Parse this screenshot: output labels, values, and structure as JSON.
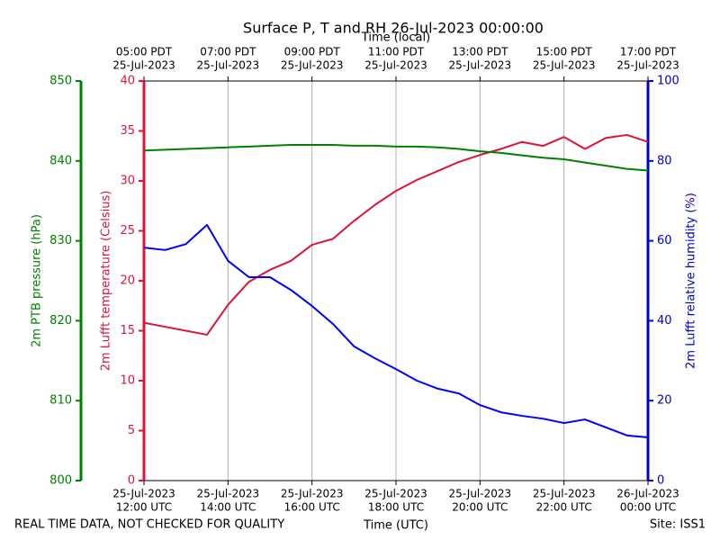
{
  "chart_data": {
    "type": "line",
    "title": "Surface P, T and RH 26-Jul-2023 00:00:00",
    "x2label": "Time (local)",
    "xlabel": "Time (UTC)",
    "ylabel": "2m Lufft temperature (Celsius)",
    "y2label": "2m Lufft relative humidity (%)",
    "y3label": "2m PTB pressure (hPa)",
    "footer_left": "REAL TIME DATA, NOT CHECKED FOR QUALITY",
    "footer_right": "Site: ISS1",
    "grid": true,
    "xlim": [
      0,
      12
    ],
    "xticks": [
      {
        "value": 0,
        "label": [
          "25-Jul-2023",
          "12:00 UTC"
        ]
      },
      {
        "value": 2,
        "label": [
          "25-Jul-2023",
          "14:00 UTC"
        ]
      },
      {
        "value": 4,
        "label": [
          "25-Jul-2023",
          "16:00 UTC"
        ]
      },
      {
        "value": 6,
        "label": [
          "25-Jul-2023",
          "18:00 UTC"
        ]
      },
      {
        "value": 8,
        "label": [
          "25-Jul-2023",
          "20:00 UTC"
        ]
      },
      {
        "value": 10,
        "label": [
          "25-Jul-2023",
          "22:00 UTC"
        ]
      },
      {
        "value": 12,
        "label": [
          "26-Jul-2023",
          "00:00 UTC"
        ]
      }
    ],
    "x2ticks": [
      {
        "value": 0,
        "label": [
          "05:00 PDT",
          "25-Jul-2023"
        ]
      },
      {
        "value": 2,
        "label": [
          "07:00 PDT",
          "25-Jul-2023"
        ]
      },
      {
        "value": 4,
        "label": [
          "09:00 PDT",
          "25-Jul-2023"
        ]
      },
      {
        "value": 6,
        "label": [
          "11:00 PDT",
          "25-Jul-2023"
        ]
      },
      {
        "value": 8,
        "label": [
          "13:00 PDT",
          "25-Jul-2023"
        ]
      },
      {
        "value": 10,
        "label": [
          "15:00 PDT",
          "25-Jul-2023"
        ]
      },
      {
        "value": 12,
        "label": [
          "17:00 PDT",
          "25-Jul-2023"
        ]
      }
    ],
    "ylim": [
      0,
      40
    ],
    "yticks": [
      0,
      5,
      10,
      15,
      20,
      25,
      30,
      35,
      40
    ],
    "ycolor": "#dc143c",
    "y2lim": [
      0,
      100
    ],
    "y2ticks": [
      0,
      20,
      40,
      60,
      80,
      100
    ],
    "y2color": "#0000cc",
    "y3lim": [
      800,
      850
    ],
    "y3ticks": [
      800,
      810,
      820,
      830,
      840,
      850
    ],
    "y3color": "#008000",
    "x": [
      0,
      0.5,
      1,
      1.5,
      2,
      2.5,
      3,
      3.5,
      4,
      4.5,
      5,
      5.5,
      6,
      6.5,
      7,
      7.5,
      8,
      8.5,
      9,
      9.5,
      10,
      10.5,
      11,
      11.5,
      12
    ],
    "series": [
      {
        "axis": "y",
        "color": "#dc143c",
        "values": [
          15.8,
          15.4,
          15.0,
          14.6,
          17.6,
          19.9,
          21.1,
          22.0,
          23.6,
          24.2,
          26.0,
          27.6,
          29.0,
          30.1,
          31.0,
          31.9,
          32.6,
          33.2,
          33.9,
          33.5,
          34.4,
          33.2,
          34.3,
          34.6,
          33.9
        ]
      },
      {
        "axis": "y3",
        "color": "#008000",
        "values": [
          841.3,
          841.4,
          841.5,
          841.6,
          841.7,
          841.8,
          841.9,
          842.0,
          842.0,
          842.0,
          841.9,
          841.9,
          841.8,
          841.8,
          841.7,
          841.5,
          841.2,
          841.0,
          840.7,
          840.4,
          840.2,
          839.8,
          839.4,
          839.0,
          838.8
        ]
      },
      {
        "axis": "y2",
        "color": "#0000ff",
        "values": [
          58.3,
          57.7,
          59.2,
          64.0,
          55.0,
          50.9,
          50.9,
          47.7,
          43.7,
          39.2,
          33.6,
          30.6,
          27.9,
          25.0,
          23.0,
          21.8,
          18.9,
          17.1,
          16.2,
          15.5,
          14.4,
          15.3,
          13.3,
          11.3,
          10.8
        ]
      }
    ]
  }
}
